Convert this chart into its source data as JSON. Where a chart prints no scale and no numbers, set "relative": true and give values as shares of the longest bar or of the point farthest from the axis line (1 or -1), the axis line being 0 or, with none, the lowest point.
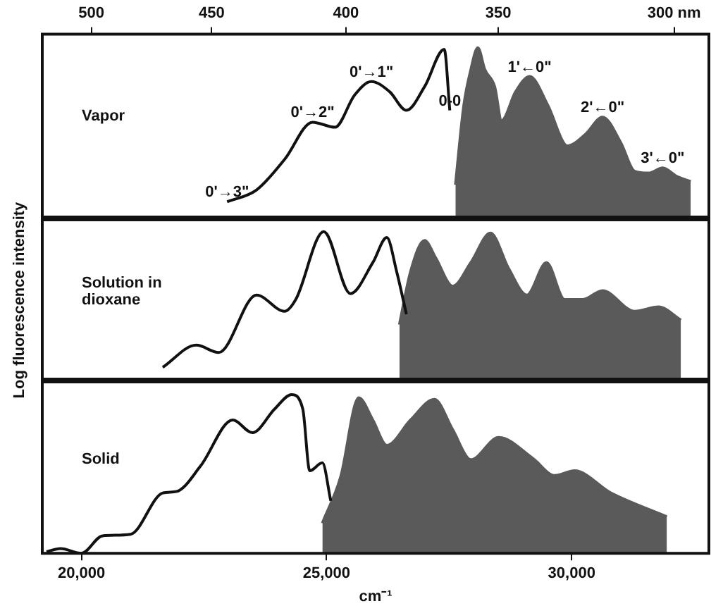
{
  "chart_data": [
    {
      "type": "line",
      "relative": true,
      "marker": "none",
      "xlim": [
        19200,
        32800
      ],
      "log": "x2",
      "x2lim": [
        522,
        291
      ],
      "x2ticks": [
        500,
        450,
        400,
        350,
        {
          "value": 300,
          "label": "300 nm"
        }
      ],
      "tick_labels": "x2",
      "annotations": [
        "Vapor",
        {
          "text": "0'→3\"",
          "x": 22971,
          "y": 0.09
        },
        {
          "text": "0'→2\"",
          "x": 24714,
          "y": 0.56
        },
        {
          "text": "0'→1\"",
          "x": 25914,
          "y": 0.8
        },
        {
          "text": "0-0",
          "x": 27514,
          "y": 0.63
        },
        {
          "text": "1'←0\"",
          "x": 29143,
          "y": 0.83
        },
        {
          "text": "2'←0\"",
          "x": 30629,
          "y": 0.59
        },
        {
          "text": "3'←0\"",
          "x": 31857,
          "y": 0.29
        }
      ],
      "series": [
        {
          "type": "line",
          "color": "#111111",
          "x": [
            22971,
            23571,
            24143,
            24714,
            25171,
            25571,
            25914,
            26286,
            26629,
            27000,
            27400,
            27514
          ],
          "values": [
            0.09,
            0.16,
            0.34,
            0.56,
            0.53,
            0.72,
            0.8,
            0.74,
            0.63,
            0.77,
            0.99,
            0.63
          ]
        },
        {
          "type": "area",
          "color": "#5a5a5a",
          "x": [
            27629,
            27800,
            27943,
            28086,
            28229,
            28429,
            28571,
            28857,
            29143,
            29514,
            29914,
            30286,
            30629,
            31000,
            31286,
            31571,
            31857,
            32143,
            32429
          ],
          "values": [
            0.19,
            0.66,
            0.87,
            1.0,
            0.87,
            0.77,
            0.57,
            0.74,
            0.83,
            0.66,
            0.42,
            0.49,
            0.59,
            0.44,
            0.27,
            0.26,
            0.29,
            0.24,
            0.21
          ]
        }
      ]
    },
    {
      "type": "line",
      "relative": true,
      "marker": "none",
      "xlim": [
        19200,
        32800
      ],
      "tick_labels": false,
      "ylabel": "Log fluorescence intensity",
      "annotations": [
        "Solution in dioxane"
      ],
      "series": [
        {
          "type": "line",
          "color": "#111111",
          "x": [
            21657,
            22343,
            22800,
            23571,
            24143,
            24371,
            24943,
            25486,
            25943,
            26229,
            26429,
            26629
          ],
          "values": [
            0.08,
            0.23,
            0.18,
            0.57,
            0.46,
            0.54,
            1.0,
            0.58,
            0.79,
            0.96,
            0.73,
            0.44
          ]
        },
        {
          "type": "area",
          "color": "#5a5a5a",
          "x": [
            26486,
            26714,
            27000,
            27229,
            27571,
            27943,
            28343,
            28714,
            29086,
            29486,
            29857,
            30229,
            30629,
            31286,
            31771,
            32229
          ],
          "values": [
            0.37,
            0.73,
            0.94,
            0.82,
            0.63,
            0.79,
            0.99,
            0.75,
            0.57,
            0.79,
            0.54,
            0.54,
            0.6,
            0.46,
            0.49,
            0.4
          ]
        }
      ]
    },
    {
      "type": "line",
      "relative": true,
      "marker": "none",
      "xlim": [
        19200,
        32800
      ],
      "xticks": [
        {
          "value": 20000,
          "label": "20,000"
        },
        {
          "value": 25000,
          "label": "25,000"
        },
        {
          "value": 30000,
          "label": "30,000"
        }
      ],
      "tick_labels": "x",
      "xlabel": "cm⁻¹",
      "annotations": [
        "Solid"
      ],
      "series": [
        {
          "type": "line",
          "color": "#111111",
          "x": [
            19286,
            19571,
            20000,
            20429,
            21000,
            21657,
            21943,
            22429,
            23086,
            23486,
            23943,
            24286,
            24514,
            24657,
            24914,
            25086
          ],
          "values": [
            0.01,
            0.03,
            0,
            0.11,
            0.12,
            0.38,
            0.39,
            0.55,
            0.84,
            0.76,
            0.91,
            1.0,
            0.91,
            0.52,
            0.57,
            0.33
          ]
        },
        {
          "type": "area",
          "color": "#5a5a5a",
          "x": [
            24914,
            25286,
            25657,
            25943,
            26229,
            26714,
            27200,
            27571,
            27943,
            28514,
            29200,
            29657,
            30057,
            30800,
            31943
          ],
          "values": [
            0.19,
            0.48,
            0.98,
            0.84,
            0.68,
            0.84,
            0.97,
            0.78,
            0.59,
            0.73,
            0.6,
            0.49,
            0.52,
            0.38,
            0.23
          ]
        }
      ]
    }
  ]
}
